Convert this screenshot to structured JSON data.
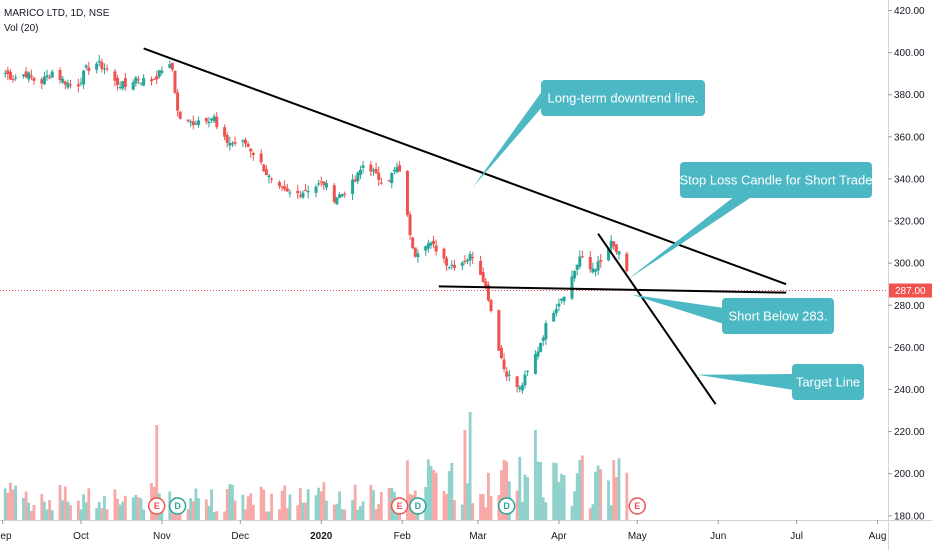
{
  "legend": {
    "symbol": "MARICO LTD, 1D, NSE",
    "volume": "Vol (20)"
  },
  "colors": {
    "up": "#26a69a",
    "down": "#ef5350",
    "up_volume": "#8fd2cb",
    "down_volume": "#f7a9a7",
    "callout": "#4bb8c4",
    "trendline": "#000000",
    "current_price": "#ef5350",
    "earnings": "#ef5350",
    "dividend": "#26a69a"
  },
  "chart_data": {
    "type": "candlestick",
    "title": "MARICO LTD, 1D, NSE",
    "ylim": [
      178,
      425
    ],
    "y_ticks": [
      "420.00",
      "400.00",
      "380.00",
      "360.00",
      "340.00",
      "320.00",
      "300.00",
      "280.00",
      "260.00",
      "240.00",
      "220.00",
      "200.00",
      "180.00"
    ],
    "x_ticks": [
      "Sep",
      "Oct",
      "Nov",
      "Dec",
      "2020",
      "Feb",
      "Mar",
      "Apr",
      "May",
      "Jun",
      "Jul",
      "Aug"
    ],
    "x_tick_dates": [
      "2019-09-01",
      "2019-10-01",
      "2019-11-01",
      "2019-12-01",
      "2020-01-01",
      "2020-02-01",
      "2020-03-01",
      "2020-04-01",
      "2020-05-01",
      "2020-06-01",
      "2020-07-01",
      "2020-08-01"
    ],
    "x_range": [
      "2019-08-31",
      "2020-08-05"
    ],
    "current_price": {
      "label": "287.00",
      "value": 287
    },
    "close_path": [
      [
        "2019-08-31",
        392
      ],
      [
        "2019-09-05",
        388
      ],
      [
        "2019-09-10",
        390
      ],
      [
        "2019-09-15",
        385
      ],
      [
        "2019-09-20",
        391
      ],
      [
        "2019-09-24",
        387
      ],
      [
        "2019-09-29",
        383
      ],
      [
        "2019-10-03",
        392
      ],
      [
        "2019-10-07",
        395
      ],
      [
        "2019-10-11",
        392
      ],
      [
        "2019-10-14",
        386
      ],
      [
        "2019-10-18",
        384
      ],
      [
        "2019-10-22",
        388
      ],
      [
        "2019-10-27",
        386
      ],
      [
        "2019-10-31",
        390
      ],
      [
        "2019-11-02",
        395
      ],
      [
        "2019-11-05",
        392
      ],
      [
        "2019-11-07",
        372
      ],
      [
        "2019-11-09",
        366
      ],
      [
        "2019-11-13",
        367
      ],
      [
        "2019-11-17",
        369
      ],
      [
        "2019-11-21",
        369
      ],
      [
        "2019-11-23",
        359
      ],
      [
        "2019-11-28",
        357
      ],
      [
        "2019-12-03",
        357
      ],
      [
        "2019-12-07",
        351
      ],
      [
        "2019-12-10",
        345
      ],
      [
        "2019-12-14",
        336
      ],
      [
        "2019-12-19",
        333
      ],
      [
        "2019-12-23",
        333
      ],
      [
        "2019-12-28",
        336
      ],
      [
        "2020-01-02",
        338
      ],
      [
        "2020-01-06",
        331
      ],
      [
        "2020-01-09",
        333
      ],
      [
        "2020-01-14",
        339
      ],
      [
        "2020-01-18",
        349
      ],
      [
        "2020-01-22",
        341
      ],
      [
        "2020-01-26",
        339
      ],
      [
        "2020-01-30",
        345
      ],
      [
        "2020-02-02",
        336
      ],
      [
        "2020-02-04",
        312
      ],
      [
        "2020-02-06",
        305
      ],
      [
        "2020-02-10",
        310
      ],
      [
        "2020-02-14",
        307
      ],
      [
        "2020-02-19",
        299
      ],
      [
        "2020-02-23",
        300
      ],
      [
        "2020-02-28",
        304
      ],
      [
        "2020-03-03",
        293
      ],
      [
        "2020-03-05",
        284
      ],
      [
        "2020-03-08",
        265
      ],
      [
        "2020-03-11",
        250
      ],
      [
        "2020-03-14",
        244
      ],
      [
        "2020-03-17",
        240
      ],
      [
        "2020-03-20",
        248
      ],
      [
        "2020-03-24",
        259
      ],
      [
        "2020-03-27",
        270
      ],
      [
        "2020-03-30",
        278
      ],
      [
        "2020-04-02",
        284
      ],
      [
        "2020-04-05",
        290
      ],
      [
        "2020-04-09",
        303
      ],
      [
        "2020-04-13",
        297
      ],
      [
        "2020-04-17",
        300
      ],
      [
        "2020-04-21",
        309
      ],
      [
        "2020-04-25",
        302
      ],
      [
        "2020-04-28",
        291
      ]
    ],
    "trend_lines": [
      {
        "name": "Long-term downtrend",
        "points": [
          [
            "2019-10-25",
            402
          ],
          [
            "2020-06-27",
            290
          ]
        ]
      },
      {
        "name": "Support",
        "points": [
          [
            "2020-02-15",
            289
          ],
          [
            "2020-06-27",
            286
          ]
        ]
      },
      {
        "name": "Target",
        "points": [
          [
            "2020-04-16",
            314
          ],
          [
            "2020-05-31",
            233
          ]
        ]
      }
    ],
    "annotations": [
      {
        "text": "Long-term downtrend line.",
        "anchor": [
          "2020-02-28",
          336
        ]
      },
      {
        "text": "Stop Loss Candle for Short Trade",
        "anchor": [
          "2020-04-27",
          292
        ]
      },
      {
        "text": "Short Below 283.",
        "anchor": [
          "2020-04-29",
          285
        ]
      },
      {
        "text": "Target Line",
        "anchor": [
          "2020-05-24",
          247
        ]
      }
    ],
    "events": [
      {
        "letter": "E",
        "date": "2019-10-30"
      },
      {
        "letter": "D",
        "date": "2019-11-07"
      },
      {
        "letter": "E",
        "date": "2020-01-31"
      },
      {
        "letter": "D",
        "date": "2020-02-07"
      },
      {
        "letter": "D",
        "date": "2020-03-12"
      },
      {
        "letter": "E",
        "date": "2020-05-01"
      }
    ]
  }
}
